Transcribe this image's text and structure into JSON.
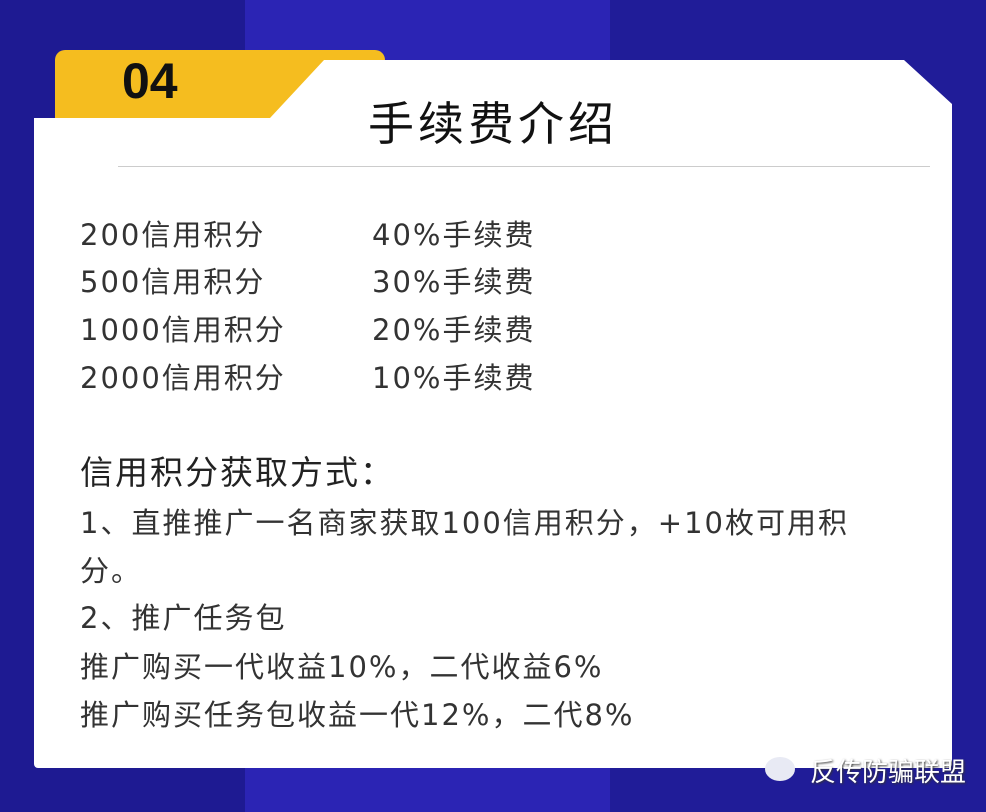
{
  "tab_number": "04",
  "title": "手续费介绍",
  "fees": [
    {
      "credit": "200信用积分",
      "fee": "40%手续费"
    },
    {
      "credit": "500信用积分",
      "fee": "30%手续费"
    },
    {
      "credit": "1000信用积分",
      "fee": "20%手续费"
    },
    {
      "credit": "2000信用积分",
      "fee": "10%手续费"
    }
  ],
  "section_heading": "信用积分获取方式：",
  "lines": [
    "1、直推推广一名商家获取100信用积分，+10枚可用积",
    "分。",
    "2、推广任务包",
    "推广购买一代收益10%，二代收益6%",
    "推广购买任务包收益一代12%，二代8%"
  ],
  "watermark": "反传防骗联盟",
  "colors": {
    "background": "#2b24b4",
    "tab": "#f5bd1f",
    "card": "#ffffff"
  }
}
